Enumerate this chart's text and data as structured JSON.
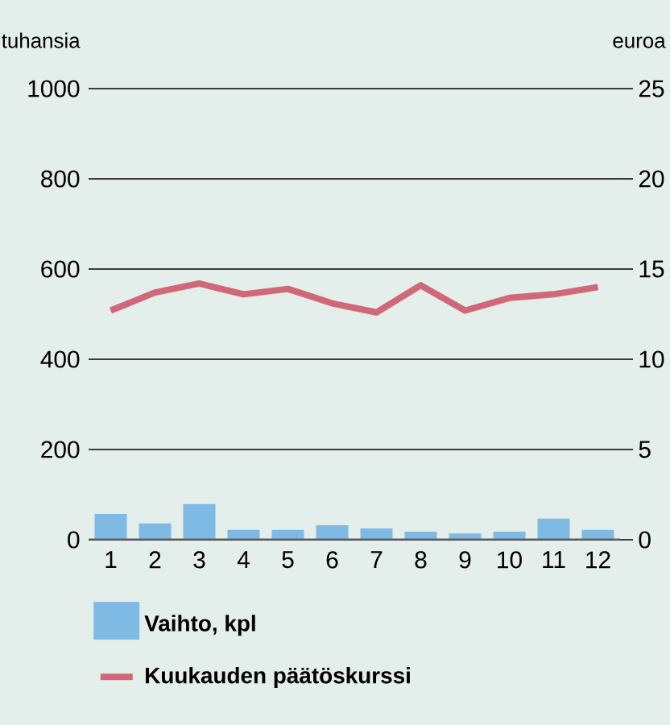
{
  "chart_data": {
    "type": "bar",
    "ylabel": "tuhansia",
    "y2label": "euroa",
    "categories": [
      "1",
      "2",
      "3",
      "4",
      "5",
      "6",
      "7",
      "8",
      "9",
      "10",
      "11",
      "12"
    ],
    "series": [
      {
        "name": "Vaihto, kpl",
        "color": "#7fbae5",
        "values": [
          57,
          36,
          79,
          22,
          22,
          32,
          25,
          18,
          14,
          18,
          47,
          22
        ]
      },
      {
        "name": "Kuukauden päätöskurssi",
        "type": "line",
        "axis": "y2",
        "color": "#d06878",
        "values": [
          12.7,
          13.7,
          14.2,
          13.6,
          13.9,
          13.1,
          12.6,
          14.1,
          12.7,
          13.4,
          13.6,
          14.0
        ]
      }
    ],
    "ylim": [
      0,
      1000
    ],
    "yticks": [
      0,
      200,
      400,
      600,
      800,
      1000
    ],
    "y2lim": [
      0,
      25
    ],
    "y2ticks": [
      0,
      5,
      10,
      15,
      20,
      25
    ],
    "grid": "y",
    "legend": "bottom"
  }
}
